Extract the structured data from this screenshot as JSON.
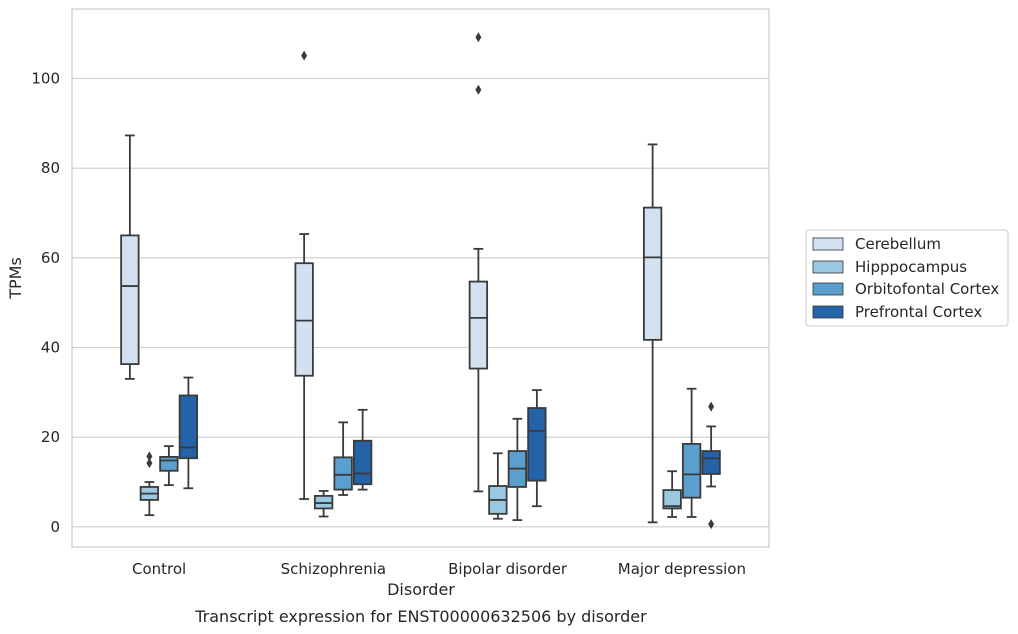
{
  "chart_data": {
    "type": "box",
    "title": "",
    "caption": "Transcript expression for ENST00000632506 by disorder",
    "xlabel": "Disorder",
    "ylabel": "TPMs",
    "ylim": [
      -4.5,
      115.5
    ],
    "yticks": [
      0,
      20,
      40,
      60,
      80,
      100
    ],
    "grid": "horizontal",
    "legend_position": "right",
    "categories": [
      "Control",
      "Schizophrenia",
      "Bipolar disorder",
      "Major depression"
    ],
    "series": [
      {
        "name": "Cerebellum",
        "color": "#d2e1f0",
        "boxes": [
          {
            "whislo": 33.0,
            "q1": 36.3,
            "med": 53.7,
            "q3": 65.0,
            "whishi": 87.3,
            "fliers": []
          },
          {
            "whislo": 6.2,
            "q1": 33.7,
            "med": 46.0,
            "q3": 58.8,
            "whishi": 65.3,
            "fliers": [
              105.1
            ]
          },
          {
            "whislo": 7.9,
            "q1": 35.3,
            "med": 46.6,
            "q3": 54.7,
            "whishi": 62.0,
            "fliers": [
              109.2,
              97.5
            ]
          },
          {
            "whislo": 1.0,
            "q1": 41.7,
            "med": 60.1,
            "q3": 71.2,
            "whishi": 85.3,
            "fliers": []
          }
        ]
      },
      {
        "name": "Hipppocampus",
        "color": "#9ac8e0",
        "boxes": [
          {
            "whislo": 2.6,
            "q1": 6.0,
            "med": 7.4,
            "q3": 8.9,
            "whishi": 10.0,
            "fliers": [
              15.7,
              14.2
            ]
          },
          {
            "whislo": 2.3,
            "q1": 4.1,
            "med": 5.3,
            "q3": 6.9,
            "whishi": 8.0,
            "fliers": []
          },
          {
            "whislo": 1.8,
            "q1": 2.9,
            "med": 6.0,
            "q3": 9.1,
            "whishi": 16.4,
            "fliers": []
          },
          {
            "whislo": 2.2,
            "q1": 4.1,
            "med": 4.6,
            "q3": 8.2,
            "whishi": 12.4,
            "fliers": []
          }
        ]
      },
      {
        "name": "Orbitofontal Cortex",
        "color": "#5b9fcf",
        "boxes": [
          {
            "whislo": 9.3,
            "q1": 12.5,
            "med": 14.8,
            "q3": 15.6,
            "whishi": 18.0,
            "fliers": []
          },
          {
            "whislo": 7.1,
            "q1": 8.3,
            "med": 11.6,
            "q3": 15.5,
            "whishi": 23.3,
            "fliers": []
          },
          {
            "whislo": 1.5,
            "q1": 8.9,
            "med": 13.0,
            "q3": 16.9,
            "whishi": 24.1,
            "fliers": []
          },
          {
            "whislo": 2.2,
            "q1": 6.5,
            "med": 11.7,
            "q3": 18.5,
            "whishi": 30.8,
            "fliers": []
          }
        ]
      },
      {
        "name": "Prefrontal Cortex",
        "color": "#2463a8",
        "boxes": [
          {
            "whislo": 8.6,
            "q1": 15.3,
            "med": 17.7,
            "q3": 29.3,
            "whishi": 33.3,
            "fliers": []
          },
          {
            "whislo": 8.3,
            "q1": 9.5,
            "med": 11.9,
            "q3": 19.2,
            "whishi": 26.1,
            "fliers": []
          },
          {
            "whislo": 4.6,
            "q1": 10.3,
            "med": 21.4,
            "q3": 26.5,
            "whishi": 30.5,
            "fliers": []
          },
          {
            "whislo": 9.0,
            "q1": 11.8,
            "med": 15.3,
            "q3": 16.9,
            "whishi": 22.4,
            "fliers": [
              26.8,
              0.6
            ]
          }
        ]
      }
    ]
  }
}
